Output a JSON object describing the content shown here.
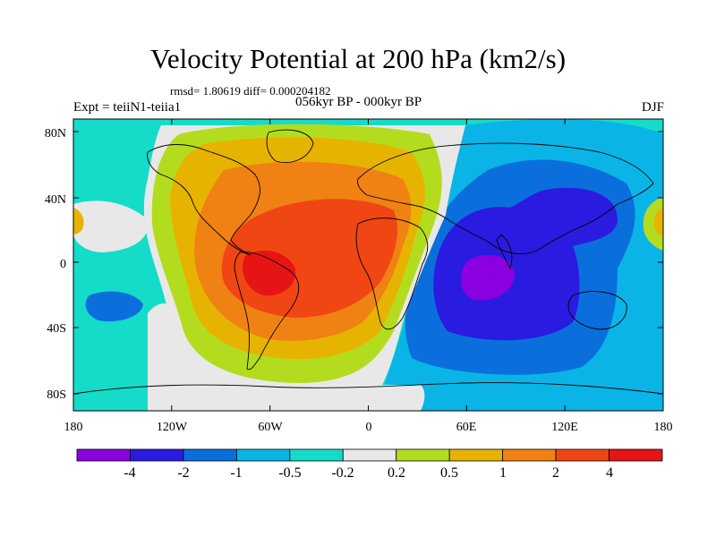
{
  "title": "Velocity Potential at 200 hPa (km2/s)",
  "stats": "rmsd= 1.80619 diff= 0.000204182",
  "left_label": "Expt = teiiN1-teiia1",
  "center_label": "056kyr BP - 000kyr BP",
  "right_label": "DJF",
  "lat_ticks": [
    "80N",
    "40N",
    "0",
    "40S",
    "80S"
  ],
  "lon_ticks": [
    "180",
    "120W",
    "60W",
    "0",
    "60E",
    "120E",
    "180"
  ],
  "colorbar": {
    "labels": [
      "-4",
      "-2",
      "-1",
      "-0.5",
      "-0.2",
      "0.2",
      "0.5",
      "1",
      "2",
      "4"
    ],
    "colors": [
      "#8b00e0",
      "#2a1be0",
      "#0a6fdc",
      "#0ab4e6",
      "#14dcc8",
      "#e8e8e8",
      "#b4dc1e",
      "#e6b400",
      "#f08214",
      "#f04614",
      "#e61414"
    ]
  },
  "map_colors": {
    "v_m5": "#8b00e0",
    "v_m3": "#2a1be0",
    "v_m15": "#0a6fdc",
    "v_m07": "#0ab4e6",
    "v_m035": "#14dcc8",
    "v_0": "#e8e8e8",
    "v_035": "#b4dc1e",
    "v_07": "#e6b400",
    "v_15": "#f08214",
    "v_3": "#f04614",
    "v_5": "#e61414",
    "coast": "#000000"
  }
}
